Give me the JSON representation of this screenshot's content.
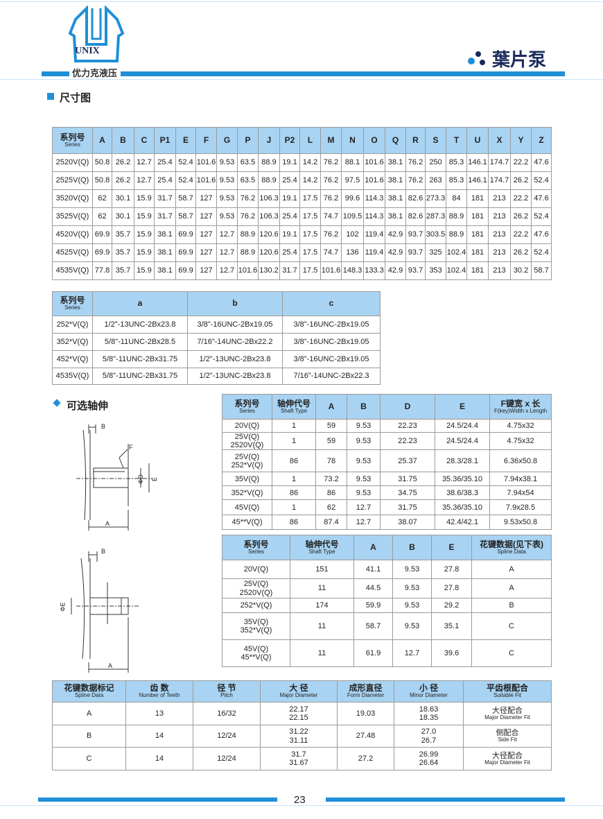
{
  "header": {
    "logo_text": "UNIX",
    "company": "优力克液压",
    "product": "葉片泵",
    "accent": "#1f8fd6",
    "header_bg": "#a9d3f2"
  },
  "sections": {
    "dimensions": "尺寸图",
    "optional_shaft": "可选轴伸"
  },
  "dimension_table": {
    "headers": [
      {
        "cn": "系列号",
        "en": "Series"
      },
      "A",
      "B",
      "C",
      "P1",
      "E",
      "F",
      "G",
      "P",
      "J",
      "P2",
      "L",
      "M",
      "N",
      "O",
      "Q",
      "R",
      "S",
      "T",
      "U",
      "X",
      "Y",
      "Z"
    ],
    "rows": [
      [
        "2520V(Q)",
        "50.8",
        "26.2",
        "12.7",
        "25.4",
        "52.4",
        "101.6",
        "9.53",
        "63.5",
        "88.9",
        "19.1",
        "14.2",
        "76.2",
        "88.1",
        "101.6",
        "38.1",
        "76.2",
        "250",
        "85.3",
        "146.1",
        "174.7",
        "22.2",
        "47.6"
      ],
      [
        "2525V(Q)",
        "50.8",
        "26.2",
        "12.7",
        "25.4",
        "52.4",
        "101.6",
        "9.53",
        "63.5",
        "88.9",
        "25.4",
        "14.2",
        "76.2",
        "97.5",
        "101.6",
        "38.1",
        "76.2",
        "263",
        "85.3",
        "146.1",
        "174.7",
        "26.2",
        "52.4"
      ],
      [
        "3520V(Q)",
        "62",
        "30.1",
        "15.9",
        "31.7",
        "58.7",
        "127",
        "9.53",
        "76.2",
        "106.3",
        "19.1",
        "17.5",
        "76.2",
        "99.6",
        "114.3",
        "38.1",
        "82.6",
        "273.3",
        "84",
        "181",
        "213",
        "22.2",
        "47.6"
      ],
      [
        "3525V(Q)",
        "62",
        "30.1",
        "15.9",
        "31.7",
        "58.7",
        "127",
        "9.53",
        "76.2",
        "106.3",
        "25.4",
        "17.5",
        "74.7",
        "109.5",
        "114.3",
        "38.1",
        "82.6",
        "287.3",
        "88.9",
        "181",
        "213",
        "26.2",
        "52.4"
      ],
      [
        "4520V(Q)",
        "69.9",
        "35.7",
        "15.9",
        "38.1",
        "69.9",
        "127",
        "12.7",
        "88.9",
        "120.6",
        "19.1",
        "17.5",
        "76.2",
        "102",
        "119.4",
        "42.9",
        "93.7",
        "303.5",
        "88.9",
        "181",
        "213",
        "22.2",
        "47.6"
      ],
      [
        "4525V(Q)",
        "69.9",
        "35.7",
        "15.9",
        "38.1",
        "69.9",
        "127",
        "12.7",
        "88.9",
        "120.6",
        "25.4",
        "17.5",
        "74.7",
        "136",
        "119.4",
        "42.9",
        "93.7",
        "325",
        "102.4",
        "181",
        "213",
        "26.2",
        "52.4"
      ],
      [
        "4535V(Q)",
        "77.8",
        "35.7",
        "15.9",
        "38.1",
        "69.9",
        "127",
        "12.7",
        "101.6",
        "130.2",
        "31.7",
        "17.5",
        "101.6",
        "148.3",
        "133.3",
        "42.9",
        "93.7",
        "353",
        "102.4",
        "181",
        "213",
        "30.2",
        "58.7"
      ]
    ]
  },
  "thread_table": {
    "headers": [
      {
        "cn": "系列号",
        "en": "Series"
      },
      "a",
      "b",
      "c"
    ],
    "rows": [
      [
        "252*V(Q)",
        "1/2\"-13UNC-2Bx23.8",
        "3/8\"-16UNC-2Bx19.05",
        "3/8\"-16UNC-2Bx19.05"
      ],
      [
        "352*V(Q)",
        "5/8\"-11UNC-2Bx28.5",
        "7/16\"-14UNC-2Bx22.2",
        "3/8\"-16UNC-2Bx19.05"
      ],
      [
        "452*V(Q)",
        "5/8\"-11UNC-2Bx31.75",
        "1/2\"-13UNC-2Bx23.8",
        "3/8\"-16UNC-2Bx19.05"
      ],
      [
        "4535V(Q)",
        "5/8\"-11UNC-2Bx31.75",
        "1/2\"-13UNC-2Bx23.8",
        "7/16\"-14UNC-2Bx22.3"
      ]
    ]
  },
  "keyed_shaft_table": {
    "headers": [
      {
        "cn": "系列号",
        "en": "Series"
      },
      {
        "cn": "轴伸代号",
        "en": "Shaft Type"
      },
      "A",
      "B",
      "D",
      "E",
      {
        "cn": "F键宽 x 长",
        "en": "F(key)Width x Length"
      }
    ],
    "rows": [
      [
        "20V(Q)",
        "1",
        "59",
        "9.53",
        "22.23",
        "24.5/24.4",
        "4.75x32"
      ],
      [
        "25V(Q)\n2520V(Q)",
        "1",
        "59",
        "9.53",
        "22.23",
        "24.5/24.4",
        "4.75x32"
      ],
      [
        "25V(Q)\n252*V(Q)",
        "86",
        "78",
        "9.53",
        "25.37",
        "28.3/28.1",
        "6.36x50.8"
      ],
      [
        "35V(Q)",
        "1",
        "73.2",
        "9.53",
        "31.75",
        "35.36/35.10",
        "7.94x38.1"
      ],
      [
        "352*V(Q)",
        "86",
        "86",
        "9.53",
        "34.75",
        "38.6/38.3",
        "7.94x54"
      ],
      [
        "45V(Q)",
        "1",
        "62",
        "12.7",
        "31.75",
        "35.36/35.10",
        "7.9x28.5"
      ],
      [
        "45**V(Q)",
        "86",
        "87.4",
        "12.7",
        "38.07",
        "42.4/42.1",
        "9.53x50.8"
      ]
    ]
  },
  "spline_shaft_table": {
    "headers": [
      {
        "cn": "系列号",
        "en": "Series"
      },
      {
        "cn": "轴伸代号",
        "en": "Shaft Type"
      },
      "A",
      "B",
      "E",
      {
        "cn": "花键数据(见下表)",
        "en": "Spline Data"
      }
    ],
    "rows": [
      [
        "20V(Q)",
        "151",
        "41.1",
        "9.53",
        "27.8",
        "A"
      ],
      [
        "25V(Q)\n2520V(Q)",
        "11",
        "44.5",
        "9.53",
        "27.8",
        "A"
      ],
      [
        "252*V(Q)",
        "174",
        "59.9",
        "9.53",
        "29.2",
        "B"
      ],
      [
        "35V(Q)\n352*V(Q)",
        "11",
        "58.7",
        "9.53",
        "35.1",
        "C"
      ],
      [
        "45V(Q)\n45**V(Q)",
        "11",
        "61.9",
        "12.7",
        "39.6",
        "C"
      ]
    ]
  },
  "spline_data_table": {
    "headers": [
      {
        "cn": "花键数据标记",
        "en": "Spline Data"
      },
      {
        "cn": "齿  数",
        "en": "Number of Teeth"
      },
      {
        "cn": "径  节",
        "en": "Pitch"
      },
      {
        "cn": "大  径",
        "en": "Major Diameter"
      },
      {
        "cn": "成形直径",
        "en": "Form Diameter"
      },
      {
        "cn": "小  径",
        "en": "Minor Diameter"
      },
      {
        "cn": "平齿根配合",
        "en": "Suitable Fit"
      }
    ],
    "rows": [
      [
        "A",
        "13",
        "16/32",
        "22.17\n22.15",
        "19.03",
        "18.63\n18.35",
        {
          "cn": "大径配合",
          "en": "Major Diameter Fit"
        }
      ],
      [
        "B",
        "14",
        "12/24",
        "31.22\n31.11",
        "27.48",
        "27.0\n26.7",
        {
          "cn": "侧配合",
          "en": "Side Fit"
        }
      ],
      [
        "C",
        "14",
        "12/24",
        "31.7\n31.67",
        "27.2",
        "26.99\n26.64",
        {
          "cn": "大径配合",
          "en": "Major Diameter Fit"
        }
      ]
    ]
  },
  "drawing_labels": {
    "b": "B",
    "f": "F",
    "d": "ΦD",
    "e": "E",
    "a": "A",
    "phi_e": "ΦE"
  },
  "footer": {
    "page_number": "23"
  }
}
